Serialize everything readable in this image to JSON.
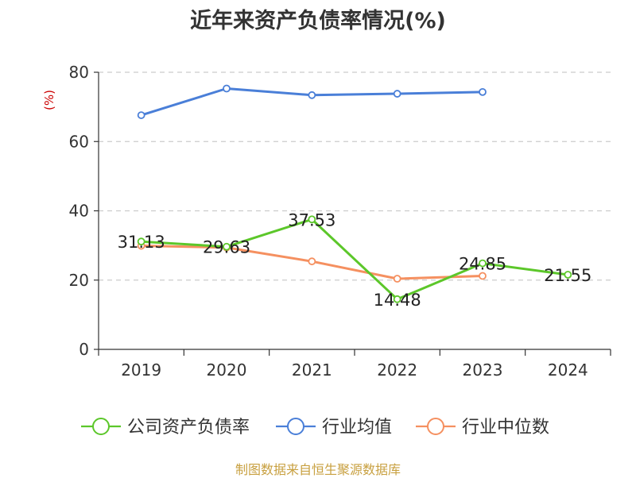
{
  "chart_data": {
    "type": "line",
    "title": "近年来资产负债率情况(%)",
    "ylabel": "(%)",
    "xlabel": "",
    "categories": [
      "2019",
      "2020",
      "2021",
      "2022",
      "2023",
      "2024"
    ],
    "ylim": [
      0,
      80
    ],
    "yticks": [
      0,
      20,
      40,
      60,
      80
    ],
    "grid": true,
    "legend_position": "bottom",
    "series": [
      {
        "name": "公司资产负债率",
        "color": "#5cc72a",
        "values": [
          31.13,
          29.63,
          37.53,
          14.48,
          24.85,
          21.55
        ],
        "labels": [
          "31.13",
          "29.63",
          "37.53",
          "14.48",
          "24.85",
          "21.55"
        ]
      },
      {
        "name": "行业均值",
        "color": "#4a7fd8",
        "values": [
          67.6,
          75.3,
          73.4,
          73.8,
          74.3,
          null
        ]
      },
      {
        "name": "行业中位数",
        "color": "#f59060",
        "values": [
          29.9,
          29.4,
          25.4,
          20.4,
          21.2,
          null
        ]
      }
    ]
  },
  "source": "制图数据来自恒生聚源数据库"
}
